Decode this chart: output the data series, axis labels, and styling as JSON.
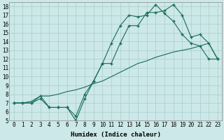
{
  "xlabel": "Humidex (Indice chaleur)",
  "background_color": "#cce8e8",
  "grid_color": "#b0d0d0",
  "line_color": "#1a6b5a",
  "ylim": [
    5,
    18.5
  ],
  "xlim": [
    -0.5,
    23.5
  ],
  "yticks": [
    5,
    6,
    7,
    8,
    9,
    10,
    11,
    12,
    13,
    14,
    15,
    16,
    17,
    18
  ],
  "xticks": [
    0,
    1,
    2,
    3,
    4,
    5,
    6,
    7,
    8,
    9,
    10,
    11,
    12,
    13,
    14,
    15,
    16,
    17,
    18,
    19,
    20,
    21,
    22,
    23
  ],
  "series1_x": [
    0,
    1,
    2,
    3,
    4,
    5,
    6,
    7,
    8,
    9,
    10,
    11,
    12,
    13,
    14,
    15,
    16,
    17,
    18,
    19,
    20,
    21,
    22,
    23
  ],
  "series1_y": [
    7.0,
    7.0,
    7.0,
    7.5,
    6.5,
    6.5,
    6.5,
    5.0,
    7.5,
    9.5,
    11.5,
    13.8,
    15.8,
    17.0,
    16.8,
    17.0,
    18.2,
    17.2,
    16.3,
    14.8,
    13.8,
    13.5,
    12.0,
    12.0
  ],
  "series2_x": [
    0,
    1,
    2,
    3,
    4,
    5,
    6,
    7,
    8,
    9,
    10,
    11,
    12,
    13,
    14,
    15,
    16,
    17,
    18,
    19,
    20,
    21,
    22,
    23
  ],
  "series2_y": [
    7.0,
    7.0,
    7.0,
    7.8,
    6.5,
    6.5,
    6.5,
    5.5,
    8.0,
    9.5,
    11.5,
    11.5,
    13.8,
    15.8,
    15.8,
    17.3,
    17.3,
    17.5,
    18.2,
    17.0,
    14.5,
    14.8,
    13.8,
    12.0
  ],
  "series3_x": [
    0,
    1,
    2,
    3,
    4,
    5,
    6,
    7,
    8,
    9,
    10,
    11,
    12,
    13,
    14,
    15,
    16,
    17,
    18,
    19,
    20,
    21,
    22,
    23
  ],
  "series3_y": [
    7.0,
    7.0,
    7.2,
    7.8,
    7.8,
    8.0,
    8.3,
    8.5,
    8.8,
    9.2,
    9.5,
    10.0,
    10.5,
    11.0,
    11.5,
    11.8,
    12.2,
    12.5,
    12.8,
    13.0,
    13.2,
    13.5,
    13.8,
    12.0
  ],
  "xlabel_fontsize": 6.5,
  "tick_fontsize": 5.5
}
